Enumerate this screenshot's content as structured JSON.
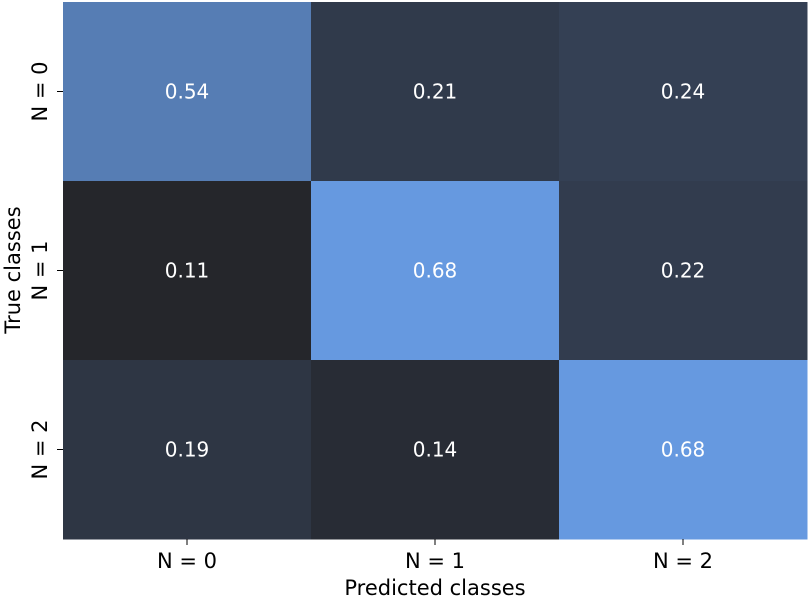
{
  "chart_data": {
    "type": "heatmap",
    "title": "",
    "xlabel": "Predicted classes",
    "ylabel": "True classes",
    "x_categories": [
      "N = 0",
      "N = 1",
      "N = 2"
    ],
    "y_categories": [
      "N = 0",
      "N = 1",
      "N = 2"
    ],
    "values": [
      [
        0.54,
        0.21,
        0.24
      ],
      [
        0.11,
        0.68,
        0.22
      ],
      [
        0.19,
        0.14,
        0.68
      ]
    ],
    "color_range": [
      0.11,
      0.68
    ],
    "colormap": {
      "low": "#25262b",
      "high": "#6699e0"
    },
    "cell_text_color": "#ffffff",
    "colorbar": false,
    "grid": false
  }
}
